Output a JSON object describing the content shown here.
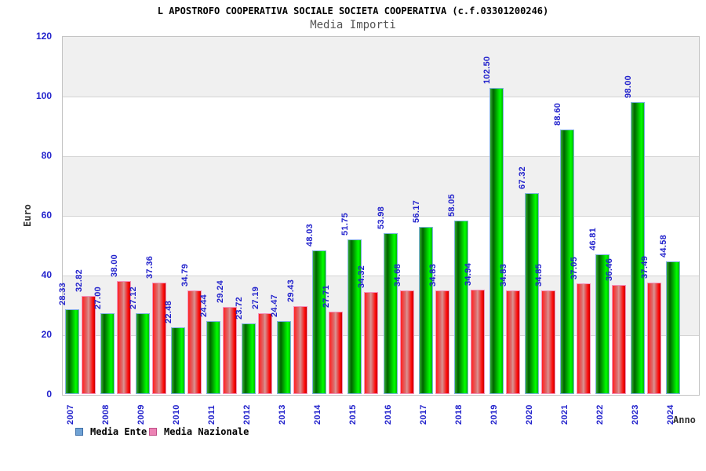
{
  "title": "L APOSTROFO COOPERATIVA SOCIALE SOCIETA COOPERATIVA (c.f.03301200246)",
  "subtitle": "Media Importi",
  "y_axis": {
    "label": "Euro",
    "ticks": [
      0,
      20,
      40,
      60,
      80,
      100,
      120
    ],
    "max": 120
  },
  "x_axis": {
    "label": "Anno"
  },
  "legend": [
    {
      "label": "Media Ente",
      "swatch_fill": "#70a2d4",
      "swatch_border": "#3f6fa8"
    },
    {
      "label": "Media Nazionale",
      "swatch_fill": "#ec82b4",
      "swatch_border": "#c05088"
    }
  ],
  "colors": {
    "label_blue": "#2222cc",
    "bar_green_main": "#00cc00",
    "bar_green_border": "#7fb2e0",
    "bar_red_main": "#ee2222",
    "bar_red_border": "#f492bc",
    "band_gray": "#f0f0f0",
    "band_white": "#ffffff"
  },
  "chart_data": {
    "type": "bar",
    "title": "Media Importi",
    "categories": [
      "2007",
      "2008",
      "2009",
      "2010",
      "2011",
      "2012",
      "2013",
      "2014",
      "2015",
      "2016",
      "2017",
      "2018",
      "2019",
      "2020",
      "2021",
      "2022",
      "2023",
      "2024"
    ],
    "series": [
      {
        "name": "Media Ente",
        "values": [
          28.33,
          27.0,
          27.12,
          22.48,
          24.44,
          23.72,
          24.47,
          48.03,
          51.75,
          53.98,
          56.17,
          58.05,
          102.5,
          67.32,
          88.6,
          46.81,
          98.0,
          44.58
        ]
      },
      {
        "name": "Media Nazionale",
        "values": [
          32.82,
          38.0,
          37.36,
          34.79,
          29.24,
          27.19,
          29.43,
          27.71,
          34.32,
          34.68,
          34.83,
          34.94,
          34.83,
          34.85,
          37.05,
          36.46,
          37.49,
          null
        ]
      }
    ],
    "xlabel": "Anno",
    "ylabel": "Euro",
    "ylim": [
      0,
      120
    ],
    "ytick_step": 20,
    "grid": "horizontal-bands",
    "legend_position": "bottom-left",
    "value_labels": "rotated-90-above-bars"
  }
}
